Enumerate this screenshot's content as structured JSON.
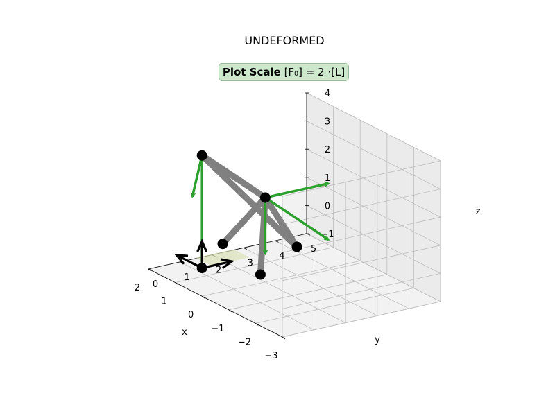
{
  "chart_data": {
    "type": "3d-structure",
    "title": "UNDEFORMED",
    "annotation": {
      "label_bold": "Plot Scale",
      "formula": "[F₀] = 2 ·[L]",
      "background_color": "#cde8cd"
    },
    "axes": {
      "xlabel": "x",
      "ylabel": "y",
      "zlabel": "z",
      "xlim": [
        -3,
        2
      ],
      "ylim": [
        0,
        5
      ],
      "zlim": [
        -1,
        4
      ],
      "xticks": [
        "−3",
        "−2",
        "−1",
        "0",
        "1",
        "2"
      ],
      "yticks": [
        "0",
        "1",
        "2",
        "3",
        "4",
        "5"
      ],
      "zticks": [
        "−1",
        "0",
        "1",
        "2",
        "3",
        "4"
      ],
      "grid": true
    },
    "colors": {
      "member": "#808080",
      "node": "#000000",
      "load": "#2ca02c",
      "support": "#000000",
      "pane": "#f2f2f2"
    },
    "nodes": [
      {
        "id": "A",
        "x": 0,
        "y": 0,
        "z": 0
      },
      {
        "id": "B",
        "x": 0,
        "y": 0,
        "z": 4
      },
      {
        "id": "C",
        "x": 0,
        "y": 2,
        "z": 2
      },
      {
        "id": "D",
        "x": -1,
        "y": 1,
        "z": 0
      },
      {
        "id": "E",
        "x": 0,
        "y": 3,
        "z": 0
      },
      {
        "id": "F",
        "x": 1,
        "y": 1.5,
        "z": 0
      }
    ],
    "members": [
      [
        "B",
        "C"
      ],
      [
        "B",
        "E"
      ],
      [
        "C",
        "D"
      ],
      [
        "C",
        "E"
      ],
      [
        "C",
        "F"
      ]
    ],
    "loads": [
      {
        "node": "B",
        "dx": -2,
        "dy": -2,
        "dz": 0
      },
      {
        "node": "B",
        "dx": 0,
        "dy": 0,
        "dz": -4
      },
      {
        "node": "C",
        "dx": 0,
        "dy": 2,
        "dz": 0
      },
      {
        "node": "C",
        "dx": 0,
        "dy": 0,
        "dz": -2
      },
      {
        "node": "C",
        "dx": 0,
        "dy": 2,
        "dz": -2
      }
    ],
    "support": {
      "node": "A",
      "components": [
        "x",
        "y",
        "z"
      ]
    }
  }
}
